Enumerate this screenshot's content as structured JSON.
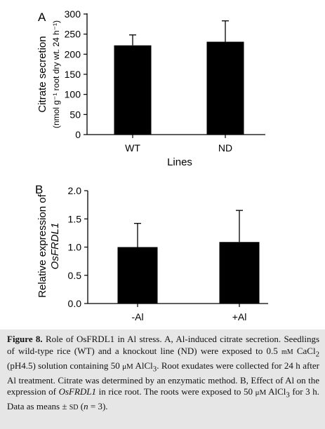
{
  "chart_data": [
    {
      "panel": "A",
      "type": "bar",
      "xlabel": "Lines",
      "ylabel": "Citrate secretion",
      "ylabel_units": "(nmol g⁻¹ root dry wt. 24 h⁻¹)",
      "categories": [
        "WT",
        "ND"
      ],
      "values": [
        222,
        231
      ],
      "errors": [
        26,
        52
      ],
      "ylim": [
        0,
        300
      ],
      "yticks": [
        "0",
        "50",
        "100",
        "150",
        "200",
        "250",
        "300"
      ],
      "ytick_values": [
        0,
        50,
        100,
        150,
        200,
        250,
        300
      ],
      "bar_color": "#000000"
    },
    {
      "panel": "B",
      "type": "bar",
      "xlabel": "",
      "ylabel_line1": "Relative expression of",
      "ylabel_line2": "OsFRDL1",
      "categories": [
        "-Al",
        "+Al"
      ],
      "values": [
        1.0,
        1.09
      ],
      "errors": [
        0.42,
        0.56
      ],
      "ylim": [
        0,
        2.0
      ],
      "yticks": [
        "0.0",
        "0.5",
        "1.0",
        "1.5",
        "2.0"
      ],
      "ytick_values": [
        0,
        0.5,
        1.0,
        1.5,
        2.0
      ],
      "bar_color": "#000000"
    }
  ],
  "caption": {
    "label": "Figure 8.",
    "p1": " Role of OsFRDL1 in Al stress. A, Al-induced citrate secretion. Seedlings of wild-type rice (WT) and a knockout line (ND) were exposed to 0.5 ",
    "mm": "mM",
    "p2": " CaCl",
    "sub2": "2",
    "p3": " (pH4.5) solution containing 50 ",
    "um1": "μM",
    "p4": " AlCl",
    "sub3a": "3",
    "p5": ". Root exudates were collected for 24 h after Al treatment. Citrate was determined by an enzymatic method. B, Effect of Al on the expression of ",
    "gene": "OsFRDL1",
    "p6": " in rice root. The roots were exposed to 50 ",
    "um2": "μM",
    "p7": " AlCl",
    "sub3b": "3",
    "p8": " for 3 h. Data as means ± ",
    "sd": "SD",
    "p9": " (",
    "n": "n",
    "p10": " = 3)."
  }
}
